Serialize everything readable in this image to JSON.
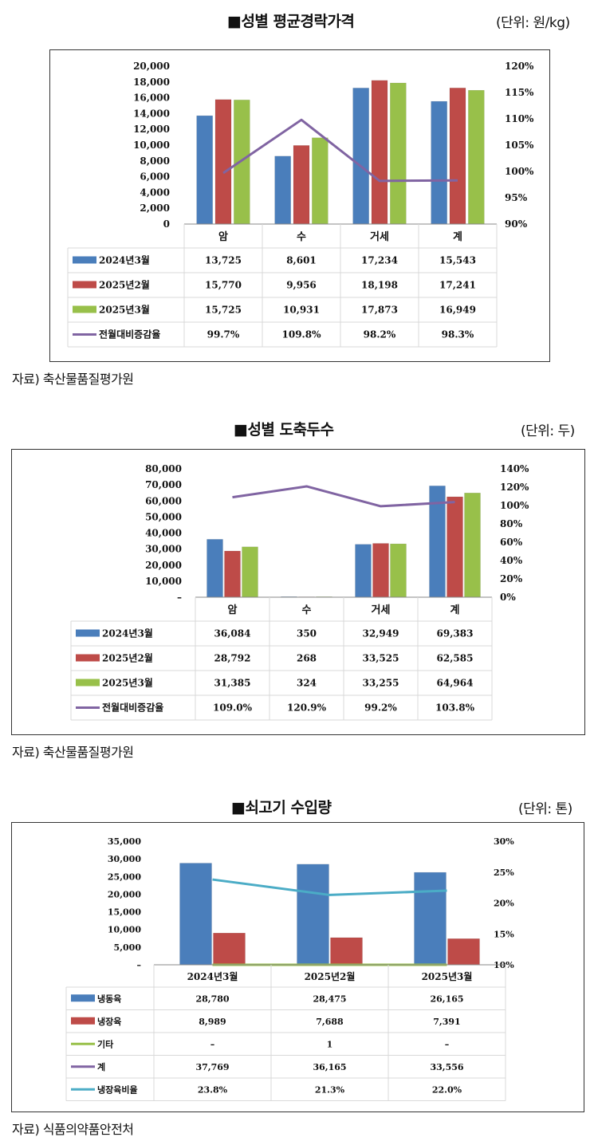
{
  "colors": {
    "series_blue": "#4a7ebb",
    "series_red": "#be4b48",
    "series_green": "#98c04a",
    "line_purple": "#8064a2",
    "line_teal": "#4bacc6",
    "grid": "#d9d9d9",
    "border": "#333333"
  },
  "sections": [
    {
      "title": "■성별 평균경락가격",
      "unit": "(단위: 원/kg)",
      "source": "자료) 축산물품질평가원"
    },
    {
      "title": "■성별 도축두수",
      "unit": "(단위: 두)",
      "source": "자료) 축산물품질평가원"
    },
    {
      "title": "■쇠고기 수입량",
      "unit": "(단위: 톤)",
      "source": "자료) 식품의약품안전처"
    }
  ],
  "chart_data": [
    {
      "type": "bar",
      "categories": [
        "암",
        "수",
        "거세",
        "계"
      ],
      "series": [
        {
          "name": "2024년3월",
          "kind": "bar",
          "color": "#4a7ebb",
          "values": [
            13725,
            8601,
            17234,
            15543
          ],
          "labels": [
            "13,725",
            "8,601",
            "17,234",
            "15,543"
          ]
        },
        {
          "name": "2025년2월",
          "kind": "bar",
          "color": "#be4b48",
          "values": [
            15770,
            9956,
            18198,
            17241
          ],
          "labels": [
            "15,770",
            "9,956",
            "18,198",
            "17,241"
          ]
        },
        {
          "name": "2025년3월",
          "kind": "bar",
          "color": "#98c04a",
          "values": [
            15725,
            10931,
            17873,
            16949
          ],
          "labels": [
            "15,725",
            "10,931",
            "17,873",
            "16,949"
          ]
        },
        {
          "name": "전월대비증감율",
          "kind": "line",
          "axis": "right",
          "color": "#8064a2",
          "values": [
            99.7,
            109.8,
            98.2,
            98.3
          ],
          "labels": [
            "99.7%",
            "109.8%",
            "98.2%",
            "98.3%"
          ]
        }
      ],
      "y_left": {
        "min": 0,
        "max": 20000,
        "ticks": [
          "0",
          "2,000",
          "4,000",
          "6,000",
          "8,000",
          "10,000",
          "12,000",
          "14,000",
          "16,000",
          "18,000",
          "20,000"
        ]
      },
      "y_right": {
        "min": 90,
        "max": 120,
        "ticks": [
          "90%",
          "95%",
          "100%",
          "105%",
          "110%",
          "115%",
          "120%"
        ]
      },
      "grid": false,
      "legend": "data table"
    },
    {
      "type": "bar",
      "categories": [
        "암",
        "수",
        "거세",
        "계"
      ],
      "series": [
        {
          "name": "2024년3월",
          "kind": "bar",
          "color": "#4a7ebb",
          "values": [
            36084,
            350,
            32949,
            69383
          ],
          "labels": [
            "36,084",
            "350",
            "32,949",
            "69,383"
          ]
        },
        {
          "name": "2025년2월",
          "kind": "bar",
          "color": "#be4b48",
          "values": [
            28792,
            268,
            33525,
            62585
          ],
          "labels": [
            "28,792",
            "268",
            "33,525",
            "62,585"
          ]
        },
        {
          "name": "2025년3월",
          "kind": "bar",
          "color": "#98c04a",
          "values": [
            31385,
            324,
            33255,
            64964
          ],
          "labels": [
            "31,385",
            "324",
            "33,255",
            "64,964"
          ]
        },
        {
          "name": "전월대비증감율",
          "kind": "line",
          "axis": "right",
          "color": "#8064a2",
          "values": [
            109.0,
            120.9,
            99.2,
            103.8
          ],
          "labels": [
            "109.0%",
            "120.9%",
            "99.2%",
            "103.8%"
          ]
        }
      ],
      "y_left": {
        "min": 0,
        "max": 80000,
        "ticks": [
          "–",
          "10,000",
          "20,000",
          "30,000",
          "40,000",
          "50,000",
          "60,000",
          "70,000",
          "80,000"
        ]
      },
      "y_right": {
        "min": 0,
        "max": 140,
        "ticks": [
          "0%",
          "20%",
          "40%",
          "60%",
          "80%",
          "100%",
          "120%",
          "140%"
        ]
      },
      "grid": false,
      "legend": "data table"
    },
    {
      "type": "bar",
      "categories": [
        "2024년3월",
        "2025년2월",
        "2025년3월"
      ],
      "series": [
        {
          "name": "냉동육",
          "kind": "bar",
          "color": "#4a7ebb",
          "values": [
            28780,
            28475,
            26165
          ],
          "labels": [
            "28,780",
            "28,475",
            "26,165"
          ]
        },
        {
          "name": "냉장육",
          "kind": "bar",
          "color": "#be4b48",
          "values": [
            8989,
            7688,
            7391
          ],
          "labels": [
            "8,989",
            "7,688",
            "7,391"
          ]
        },
        {
          "name": "기타",
          "kind": "line",
          "axis": "left",
          "color": "#98c04a",
          "values": [
            0,
            1,
            0
          ],
          "labels": [
            "–",
            "1",
            "–"
          ]
        },
        {
          "name": "계",
          "kind": "hidden",
          "color": "#8064a2",
          "values": [
            37769,
            36165,
            33556
          ],
          "labels": [
            "37,769",
            "36,165",
            "33,556"
          ]
        },
        {
          "name": "냉장육비율",
          "kind": "line",
          "axis": "right",
          "color": "#4bacc6",
          "values": [
            23.8,
            21.3,
            22.0
          ],
          "labels": [
            "23.8%",
            "21.3%",
            "22.0%"
          ]
        }
      ],
      "y_left": {
        "min": 0,
        "max": 35000,
        "ticks": [
          "–",
          "5,000",
          "10,000",
          "15,000",
          "20,000",
          "25,000",
          "30,000",
          "35,000"
        ]
      },
      "y_right": {
        "min": 10,
        "max": 30,
        "ticks": [
          "10%",
          "15%",
          "20%",
          "25%",
          "30%"
        ]
      },
      "grid": false,
      "legend": "data table"
    }
  ]
}
